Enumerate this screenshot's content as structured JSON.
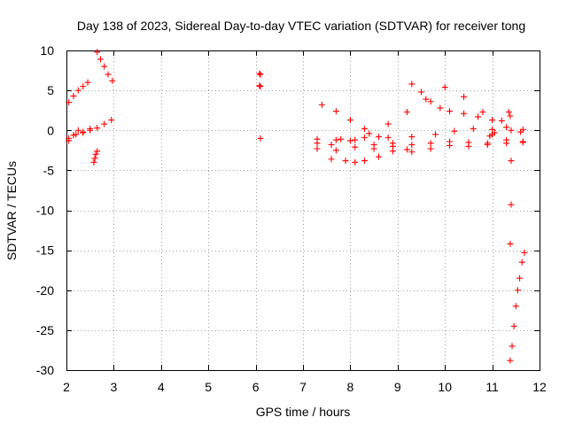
{
  "chart_data": {
    "type": "scatter",
    "title": "Day 138 of 2023, Sidereal Day-to-day VTEC variation (SDTVAR) for receiver tong",
    "xlabel": "GPS time / hours",
    "ylabel": "SDTVAR / TECUs",
    "xlim": [
      2,
      12
    ],
    "ylim": [
      -30,
      10
    ],
    "xticks": [
      2,
      3,
      4,
      5,
      6,
      7,
      8,
      9,
      10,
      11,
      12
    ],
    "yticks": [
      -30,
      -25,
      -20,
      -15,
      -10,
      -5,
      0,
      5,
      10
    ],
    "grid": true,
    "marker": "plus",
    "color": "#ff0000",
    "series": [
      {
        "name": "seg1",
        "x": [
          2.05,
          2.15,
          2.25,
          2.35,
          2.45
        ],
        "y": [
          3.5,
          4.3,
          5.0,
          5.5,
          6.0
        ]
      },
      {
        "name": "seg2",
        "x": [
          2.05,
          2.2,
          2.35,
          2.5,
          2.65,
          2.8,
          2.95
        ],
        "y": [
          -1.0,
          -0.5,
          -0.2,
          0.0,
          0.3,
          0.8,
          1.3
        ]
      },
      {
        "name": "seg3",
        "x": [
          2.05,
          2.15,
          2.25,
          2.35,
          2.5
        ],
        "y": [
          -1.3,
          -0.6,
          0.0,
          -0.3,
          0.2
        ]
      },
      {
        "name": "seg4",
        "x": [
          2.58,
          2.6,
          2.62,
          2.65
        ],
        "y": [
          -4.0,
          -3.5,
          -3.0,
          -2.6
        ]
      },
      {
        "name": "seg5",
        "x": [
          2.65,
          2.72,
          2.8,
          2.88,
          2.97
        ],
        "y": [
          9.8,
          8.9,
          8.0,
          7.0,
          6.2
        ]
      },
      {
        "name": "seg6",
        "x": [
          6.08,
          6.1,
          6.08,
          6.1,
          6.1
        ],
        "y": [
          7.1,
          7.0,
          5.6,
          5.5,
          -1.0
        ]
      },
      {
        "name": "seg7",
        "x": [
          7.3,
          7.7,
          8.1,
          8.5,
          8.9,
          9.3,
          9.7,
          10.1,
          10.5,
          10.9,
          11.3,
          11.65
        ],
        "y": [
          -2.3,
          -2.5,
          -2.1,
          -2.3,
          -2.6,
          -2.7,
          -2.3,
          -1.9,
          -2.0,
          -1.8,
          -1.6,
          -1.4
        ]
      },
      {
        "name": "seg8",
        "x": [
          7.3,
          7.7,
          8.1,
          8.5,
          8.9,
          9.3,
          9.7,
          10.1,
          10.5,
          10.9,
          11.3,
          11.65
        ],
        "y": [
          -1.6,
          -1.2,
          -1.2,
          -1.8,
          -2.0,
          -1.8,
          -1.6,
          -1.4,
          -1.5,
          -1.6,
          -1.2,
          -1.5
        ]
      },
      {
        "name": "seg9",
        "x": [
          7.4,
          7.7,
          8.0,
          8.3,
          8.6,
          8.9,
          9.2
        ],
        "y": [
          3.2,
          2.4,
          1.3,
          0.2,
          -0.8,
          -1.6,
          -2.4
        ]
      },
      {
        "name": "seg10",
        "x": [
          7.3,
          7.8,
          8.3,
          8.8,
          9.3,
          9.8,
          10.2,
          10.6,
          11.0,
          11.4,
          11.65
        ],
        "y": [
          -1.1,
          -1.1,
          -0.9,
          -0.9,
          -0.8,
          -0.5,
          -0.1,
          0.2,
          0.1,
          0.0,
          0.1
        ]
      },
      {
        "name": "seg11",
        "x": [
          7.6,
          8.0,
          8.4,
          8.8,
          9.2,
          9.6,
          10.0,
          10.4,
          10.8,
          11.2
        ],
        "y": [
          -1.8,
          -1.3,
          -0.4,
          0.8,
          2.3,
          3.9,
          5.4,
          4.2,
          2.3,
          1.2
        ]
      },
      {
        "name": "seg12",
        "x": [
          9.3,
          9.5,
          9.7,
          9.9,
          10.1,
          10.4,
          10.7,
          11.0,
          11.3,
          11.6
        ],
        "y": [
          5.8,
          4.8,
          3.6,
          2.8,
          2.4,
          2.1,
          1.7,
          1.3,
          0.4,
          -0.2
        ]
      },
      {
        "name": "seg13",
        "x": [
          7.6,
          7.9,
          8.1,
          8.3,
          8.6
        ],
        "y": [
          -3.6,
          -3.8,
          -4.0,
          -3.8,
          -3.3
        ]
      },
      {
        "name": "seg14",
        "x": [
          10.95,
          11.0,
          11.05
        ],
        "y": [
          -0.7,
          -0.5,
          -0.3
        ]
      },
      {
        "name": "seg15",
        "x": [
          11.35,
          11.38,
          11.4,
          11.4,
          11.38
        ],
        "y": [
          2.3,
          1.8,
          -3.8,
          -9.3,
          -14.2
        ]
      },
      {
        "name": "seg16",
        "x": [
          11.38,
          11.42,
          11.46,
          11.5,
          11.54,
          11.58,
          11.63,
          11.68
        ],
        "y": [
          -28.8,
          -27.0,
          -24.5,
          -22.0,
          -20.0,
          -18.5,
          -16.5,
          -15.3
        ]
      }
    ]
  }
}
